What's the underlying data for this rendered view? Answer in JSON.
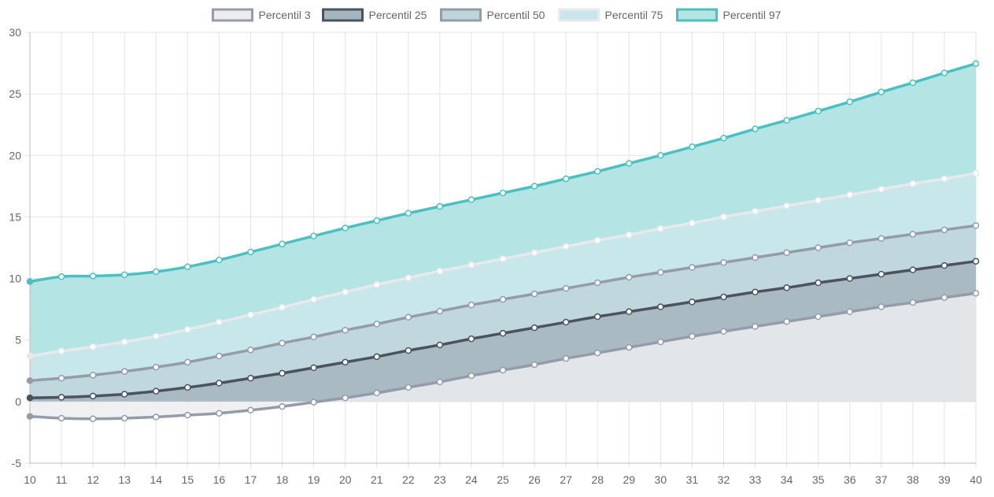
{
  "chart_data": {
    "type": "area",
    "title": "",
    "xlabel": "",
    "ylabel": "",
    "x": [
      10,
      11,
      12,
      13,
      14,
      15,
      16,
      17,
      18,
      19,
      20,
      21,
      22,
      23,
      24,
      25,
      26,
      27,
      28,
      29,
      30,
      31,
      32,
      33,
      34,
      35,
      36,
      37,
      38,
      39,
      40
    ],
    "xlim": [
      10,
      40
    ],
    "ylim": [
      -5,
      30
    ],
    "yticks": [
      -5,
      0,
      5,
      10,
      15,
      20,
      25,
      30
    ],
    "grid": true,
    "legend_position": "top-center",
    "series": [
      {
        "name": "Percentil 3",
        "line_color": "#949CAB",
        "fill_color": "#EDEDF0",
        "fill_opacity": 0.85,
        "values": [
          -1.2,
          -1.35,
          -1.4,
          -1.35,
          -1.25,
          -1.1,
          -0.95,
          -0.7,
          -0.4,
          -0.05,
          0.3,
          0.7,
          1.15,
          1.6,
          2.1,
          2.55,
          3.0,
          3.5,
          3.95,
          4.4,
          4.85,
          5.3,
          5.7,
          6.1,
          6.5,
          6.9,
          7.3,
          7.7,
          8.05,
          8.45,
          8.8
        ]
      },
      {
        "name": "Percentil 25",
        "line_color": "#4C5360",
        "fill_color": "#A5B5BD",
        "fill_opacity": 0.85,
        "values": [
          0.3,
          0.35,
          0.45,
          0.6,
          0.85,
          1.15,
          1.5,
          1.9,
          2.3,
          2.75,
          3.2,
          3.65,
          4.15,
          4.6,
          5.1,
          5.55,
          6.0,
          6.45,
          6.9,
          7.3,
          7.7,
          8.1,
          8.5,
          8.9,
          9.25,
          9.65,
          10.0,
          10.35,
          10.7,
          11.05,
          11.4
        ]
      },
      {
        "name": "Percentil 50",
        "line_color": "#949CAB",
        "fill_color": "#BED5DB",
        "fill_opacity": 0.9,
        "values": [
          1.7,
          1.9,
          2.15,
          2.45,
          2.8,
          3.2,
          3.7,
          4.2,
          4.75,
          5.25,
          5.8,
          6.3,
          6.85,
          7.35,
          7.85,
          8.3,
          8.75,
          9.2,
          9.65,
          10.1,
          10.5,
          10.9,
          11.3,
          11.7,
          12.1,
          12.5,
          12.9,
          13.25,
          13.6,
          13.95,
          14.3
        ]
      },
      {
        "name": "Percentil 75",
        "line_color": "#E8E9EC",
        "fill_color": "#C9E7EA",
        "fill_opacity": 0.95,
        "values": [
          3.7,
          4.1,
          4.45,
          4.85,
          5.3,
          5.85,
          6.45,
          7.05,
          7.65,
          8.3,
          8.9,
          9.5,
          10.05,
          10.6,
          11.1,
          11.6,
          12.1,
          12.6,
          13.1,
          13.55,
          14.05,
          14.5,
          15.0,
          15.45,
          15.9,
          16.35,
          16.8,
          17.25,
          17.7,
          18.1,
          18.55
        ]
      },
      {
        "name": "Percentil 97",
        "line_color": "#4BC0C0",
        "fill_color": "#B4E5E4",
        "fill_opacity": 1,
        "values": [
          9.75,
          10.15,
          10.2,
          10.3,
          10.55,
          10.95,
          11.5,
          12.15,
          12.8,
          13.45,
          14.1,
          14.7,
          15.3,
          15.85,
          16.4,
          16.95,
          17.5,
          18.1,
          18.7,
          19.35,
          20.0,
          20.7,
          21.4,
          22.15,
          22.85,
          23.6,
          24.35,
          25.15,
          25.9,
          26.7,
          27.45
        ]
      }
    ]
  }
}
